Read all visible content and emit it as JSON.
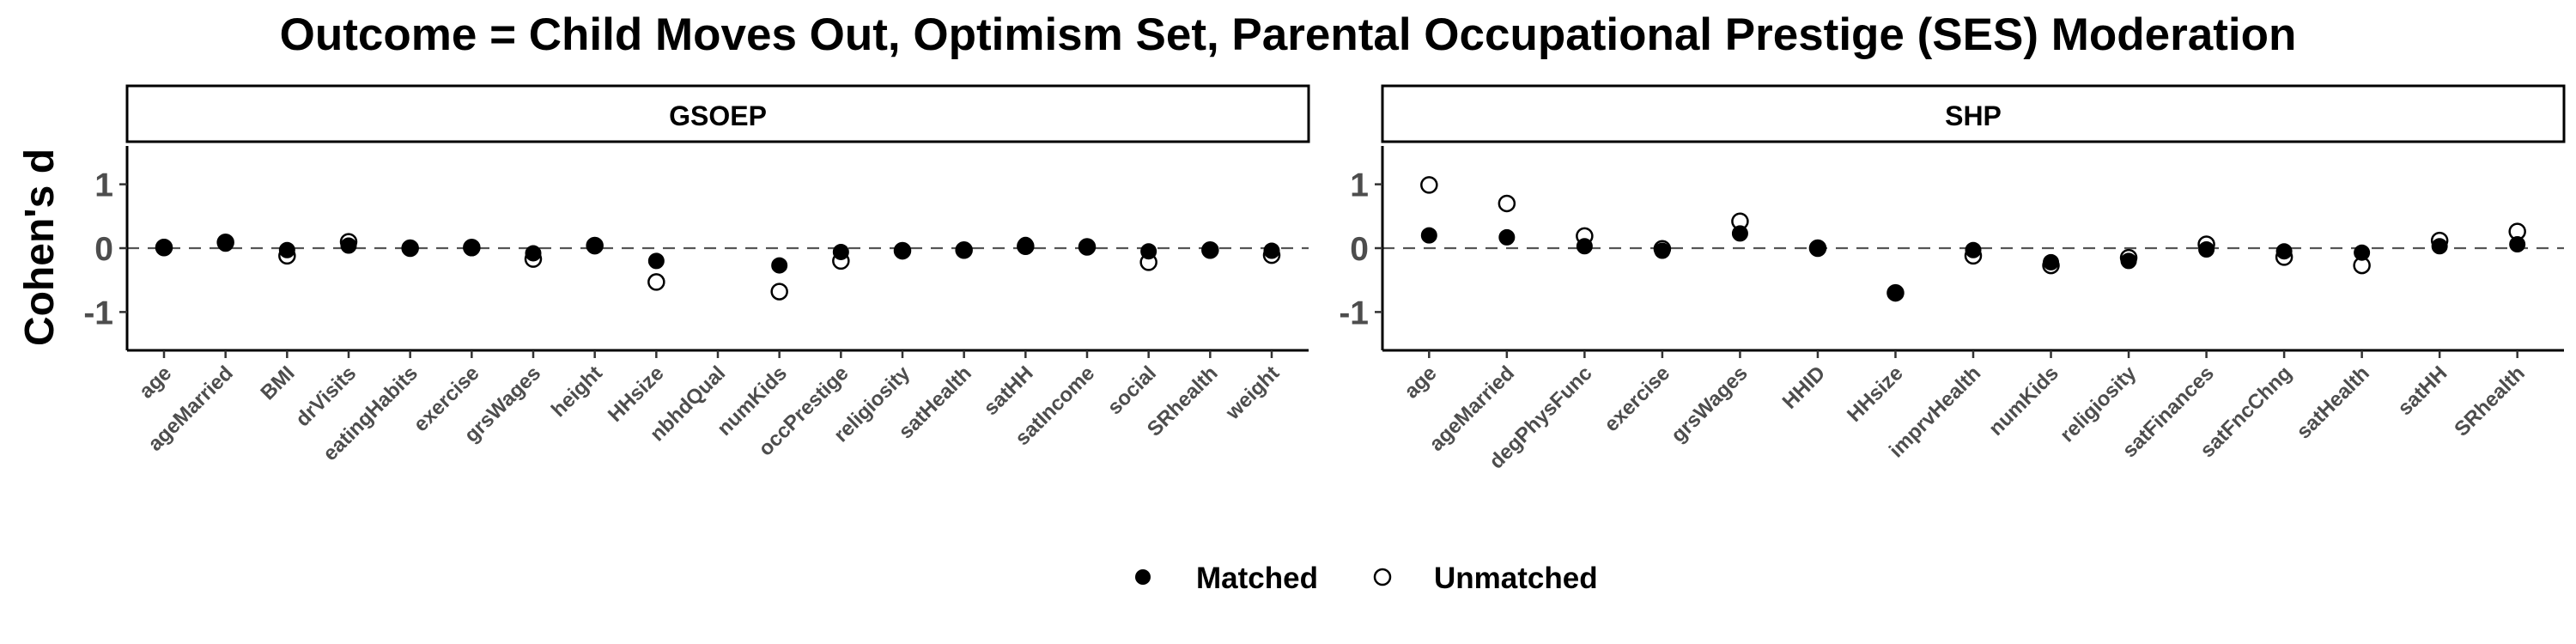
{
  "title": "Outcome = Child Moves Out, Optimism Set, Parental Occupational Prestige (SES) Moderation",
  "colors": {
    "matched": "#000000",
    "unmatched_fill": "#ffffff",
    "unmatched_stroke": "#000000",
    "zero_line": "#555555"
  },
  "chart_data": [
    {
      "type": "scatter",
      "panel": "GSOEP",
      "ylabel": "Cohen's d",
      "ylim": [
        -1.6,
        1.6
      ],
      "yticks": [
        -1,
        0,
        1
      ],
      "reference_line": 0,
      "categories": [
        "age",
        "ageMarried",
        "BMI",
        "drVisits",
        "eatingHabits",
        "exercise",
        "grsWages",
        "height",
        "HHsize",
        "nbhdQual",
        "numKids",
        "occPrestige",
        "religiosity",
        "satHealth",
        "satHH",
        "satIncome",
        "social",
        "SRhealth",
        "weight"
      ],
      "series": [
        {
          "name": "Matched",
          "values": [
            0.02,
            0.07,
            -0.03,
            0.04,
            0.0,
            0.0,
            -0.08,
            0.03,
            -0.2,
            null,
            -0.27,
            -0.06,
            -0.05,
            -0.03,
            0.05,
            0.02,
            -0.05,
            -0.03,
            -0.04
          ]
        },
        {
          "name": "Unmatched",
          "values": [
            0.01,
            0.09,
            -0.12,
            0.1,
            0.0,
            0.01,
            -0.17,
            0.04,
            -0.53,
            null,
            -0.68,
            -0.2,
            -0.04,
            -0.03,
            0.03,
            0.02,
            -0.22,
            -0.03,
            -0.11
          ]
        }
      ]
    },
    {
      "type": "scatter",
      "panel": "SHP",
      "ylabel": "",
      "ylim": [
        -1.6,
        1.6
      ],
      "yticks": [
        -1,
        0,
        1
      ],
      "reference_line": 0,
      "categories": [
        "age",
        "ageMarried",
        "degPhysFunc",
        "exercise",
        "grsWages",
        "HHID",
        "HHsize",
        "imprvHealth",
        "numKids",
        "religiosity",
        "satFinances",
        "satFncChng",
        "satHealth",
        "satHH",
        "SRhealth"
      ],
      "series": [
        {
          "name": "Matched",
          "values": [
            0.2,
            0.17,
            0.03,
            -0.04,
            0.23,
            0.0,
            -0.7,
            -0.03,
            -0.22,
            -0.2,
            -0.02,
            -0.05,
            -0.07,
            0.03,
            0.06
          ]
        },
        {
          "name": "Unmatched",
          "values": [
            0.99,
            0.7,
            0.19,
            -0.01,
            0.42,
            0.0,
            -0.7,
            -0.12,
            -0.27,
            -0.15,
            0.06,
            -0.14,
            -0.27,
            0.12,
            0.26
          ]
        }
      ]
    }
  ],
  "legend": {
    "position": "bottom",
    "items": [
      "Matched",
      "Unmatched"
    ]
  }
}
